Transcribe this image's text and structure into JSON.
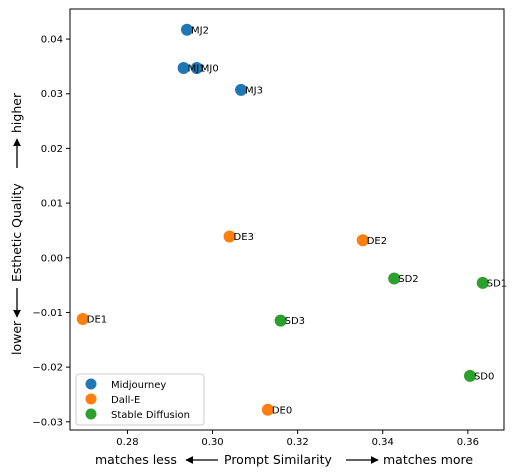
{
  "chart_data": {
    "type": "scatter",
    "title": "",
    "xlabel": {
      "left": "matches less",
      "center": "Prompt Similarity",
      "right": "matches more"
    },
    "ylabel": {
      "bottom": "lower",
      "center": "Esthetic Quality",
      "top": "higher"
    },
    "xlim": [
      0.2665,
      0.3685
    ],
    "ylim": [
      -0.0315,
      0.0455
    ],
    "xticks": [
      0.28,
      0.3,
      0.32,
      0.34,
      0.36
    ],
    "xtick_labels": [
      "0.28",
      "0.30",
      "0.32",
      "0.34",
      "0.36"
    ],
    "yticks": [
      -0.03,
      -0.02,
      -0.01,
      0.0,
      0.01,
      0.02,
      0.03,
      0.04
    ],
    "ytick_labels": [
      "−0.03",
      "−0.02",
      "−0.01",
      "0.00",
      "0.01",
      "0.02",
      "0.03",
      "0.04"
    ],
    "grid": false,
    "legend_position": "lower-left",
    "series": [
      {
        "name": "Midjourney",
        "color": "#1f77b4",
        "points": [
          {
            "label": "MJ2",
            "x": 0.294,
            "y": 0.0417
          },
          {
            "label": "MJ1",
            "x": 0.2932,
            "y": 0.0347
          },
          {
            "label": "MJ0",
            "x": 0.2963,
            "y": 0.0347
          },
          {
            "label": "MJ3",
            "x": 0.3067,
            "y": 0.0307
          }
        ]
      },
      {
        "name": "Dall-E",
        "color": "#ff7f0e",
        "points": [
          {
            "label": "DE3",
            "x": 0.304,
            "y": 0.0039
          },
          {
            "label": "DE2",
            "x": 0.3353,
            "y": 0.0032
          },
          {
            "label": "DE1",
            "x": 0.2695,
            "y": -0.0112
          },
          {
            "label": "DE0",
            "x": 0.313,
            "y": -0.0278
          }
        ]
      },
      {
        "name": "Stable Diffusion",
        "color": "#2ca02c",
        "points": [
          {
            "label": "SD2",
            "x": 0.3427,
            "y": -0.0038
          },
          {
            "label": "SD1",
            "x": 0.3635,
            "y": -0.0046
          },
          {
            "label": "SD3",
            "x": 0.316,
            "y": -0.0115
          },
          {
            "label": "SD0",
            "x": 0.3605,
            "y": -0.0216
          }
        ]
      }
    ]
  }
}
